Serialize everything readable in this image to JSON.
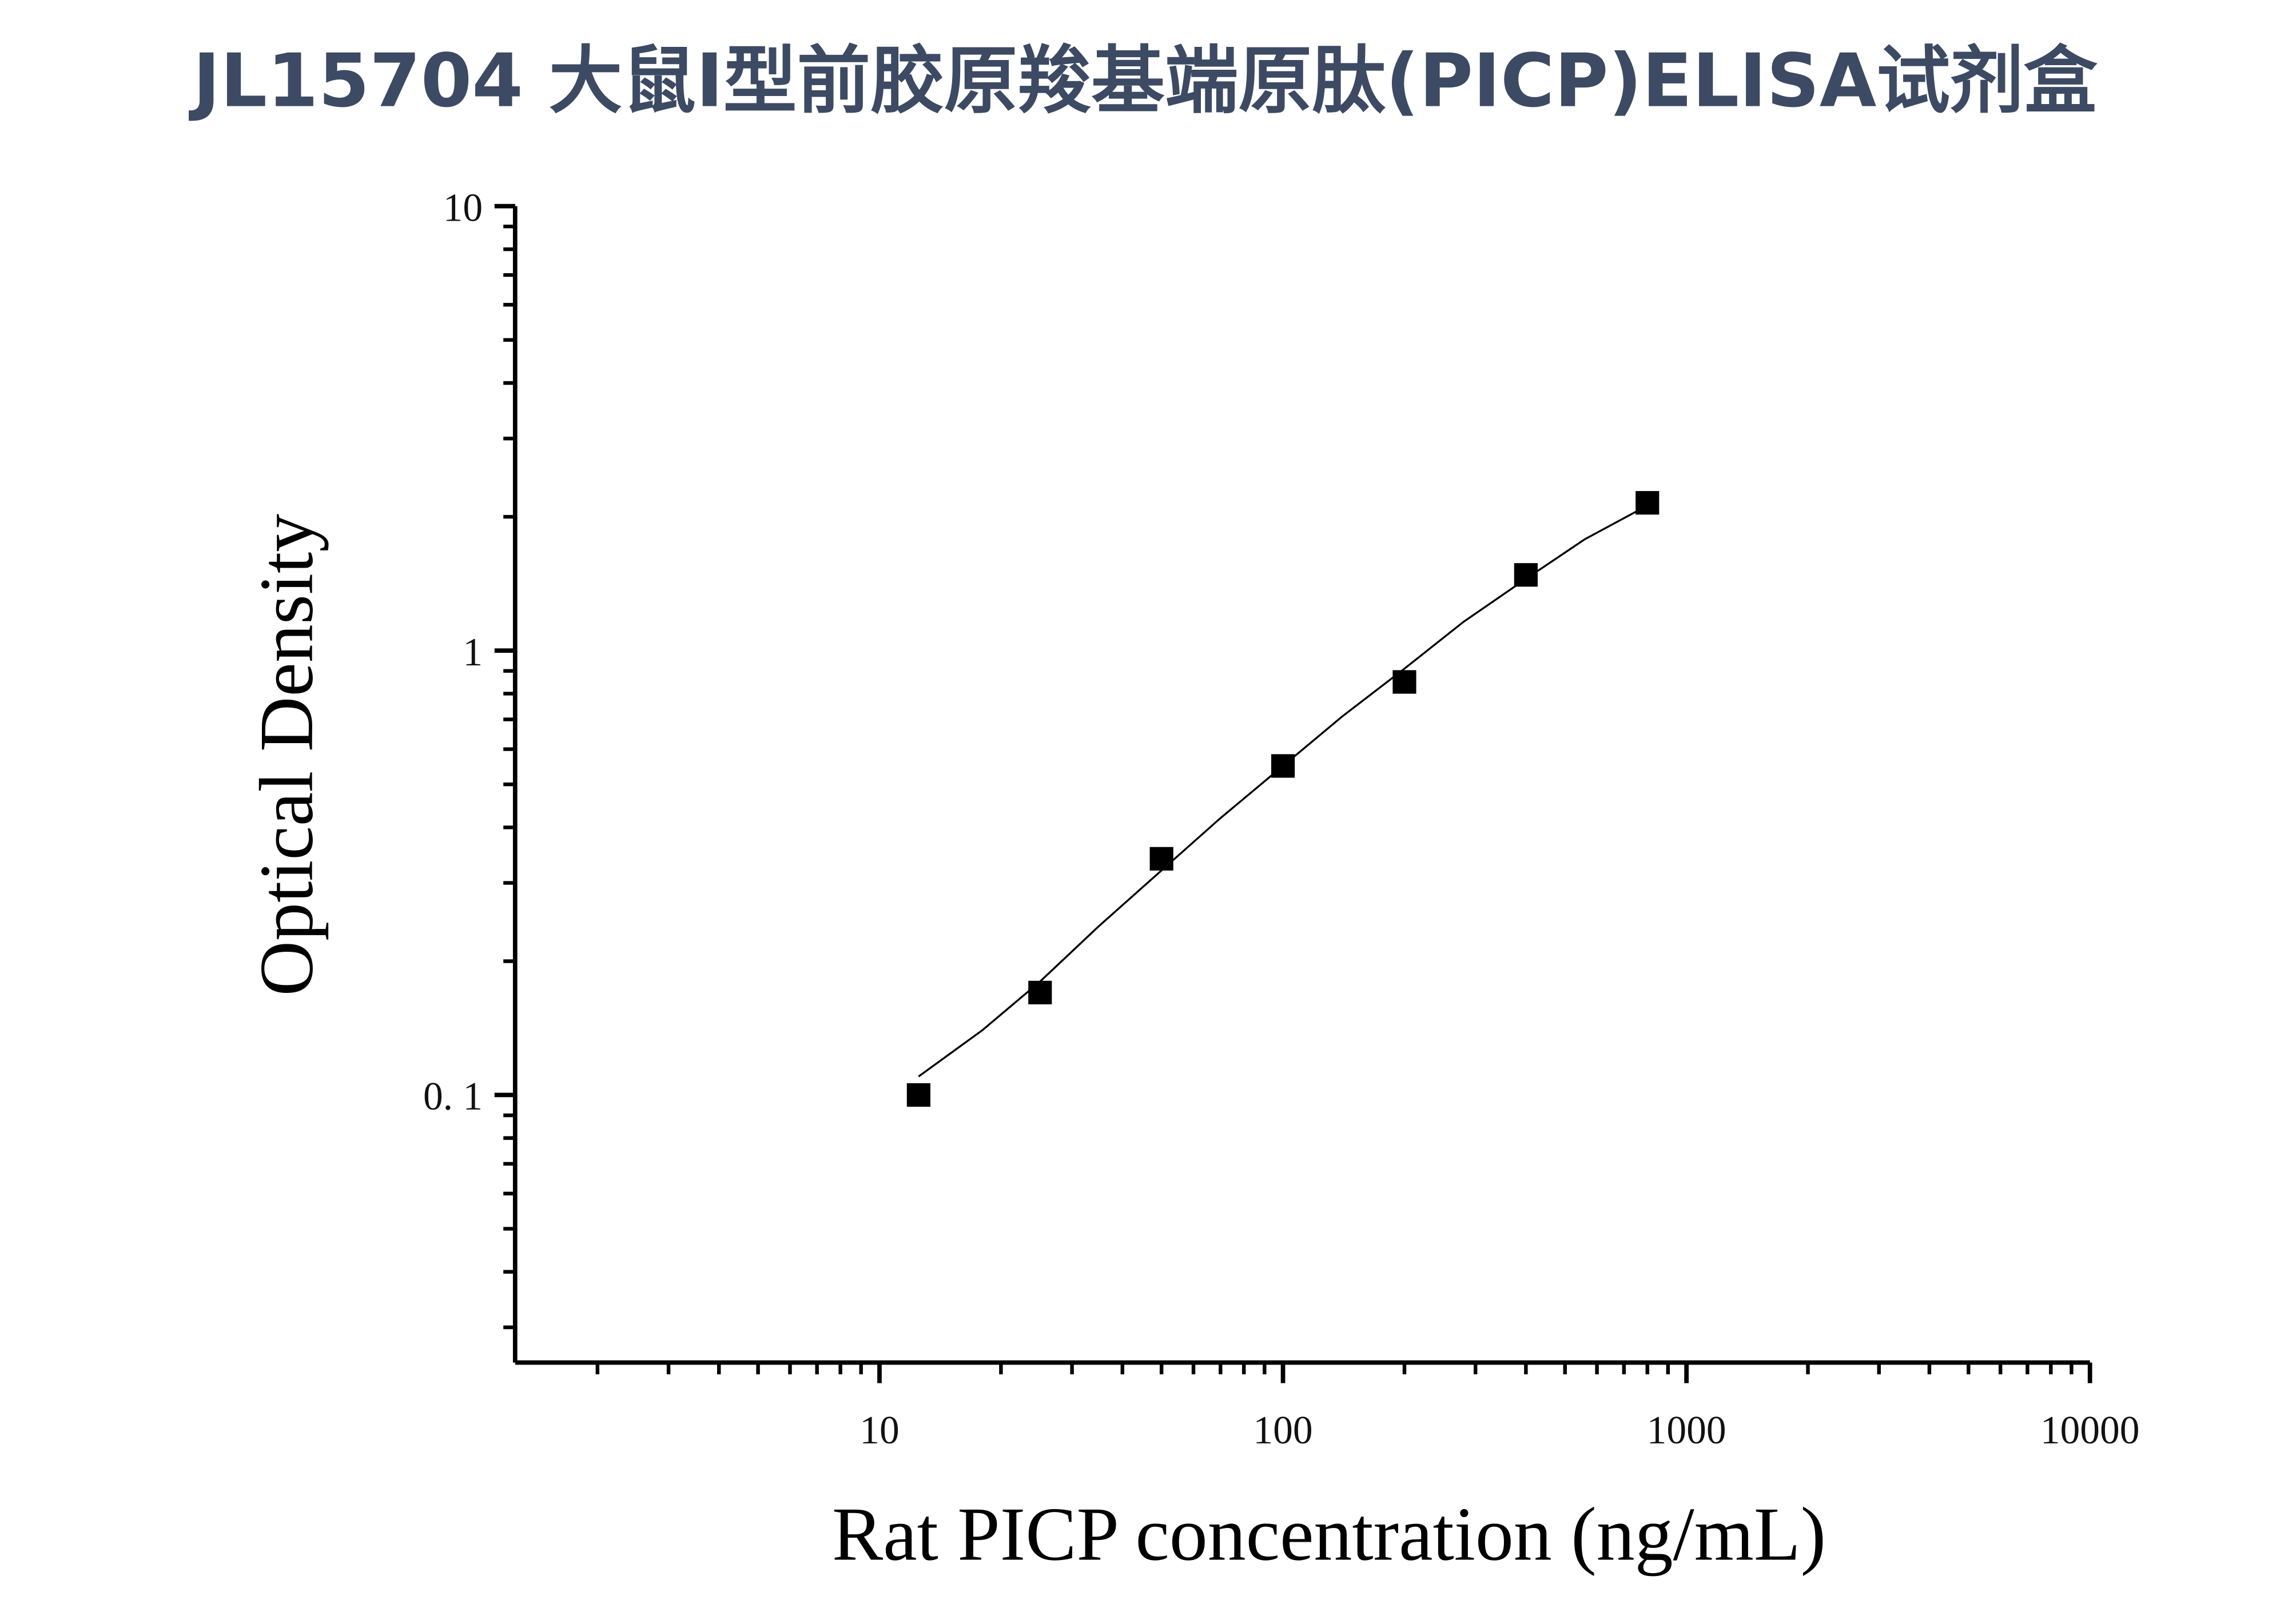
{
  "chart_data": {
    "type": "scatter",
    "title": "JL15704 大鼠Ⅰ型前胶原羧基端原肽(PⅠCP)ELISA试剂盒",
    "xlabel": "Rat PICP concentration (ng/mL)",
    "ylabel": "Optical Density",
    "x_scale": "log",
    "y_scale": "log",
    "xlim": [
      1.25,
      10000
    ],
    "ylim": [
      0.025,
      10
    ],
    "x_ticks": [
      10,
      100,
      1000,
      10000
    ],
    "x_tick_labels": [
      "10",
      "100",
      "1000",
      "10000"
    ],
    "y_ticks": [
      0.1,
      1,
      10
    ],
    "y_tick_labels": [
      "0. 1",
      "1",
      "10"
    ],
    "grid": false,
    "legend": "none",
    "title_color": "#3d4a63",
    "marker": "square",
    "marker_color": "#000000",
    "series": [
      {
        "x": [
          12.5,
          25,
          50,
          100,
          200,
          400,
          800
        ],
        "y": [
          0.1,
          0.17,
          0.34,
          0.55,
          0.85,
          1.48,
          2.15
        ]
      }
    ],
    "fit_curve": {
      "x": [
        12.5,
        18,
        25,
        35,
        50,
        70,
        100,
        140,
        200,
        280,
        400,
        560,
        800
      ],
      "y": [
        0.11,
        0.14,
        0.18,
        0.24,
        0.32,
        0.42,
        0.55,
        0.71,
        0.91,
        1.16,
        1.45,
        1.78,
        2.12
      ]
    }
  }
}
